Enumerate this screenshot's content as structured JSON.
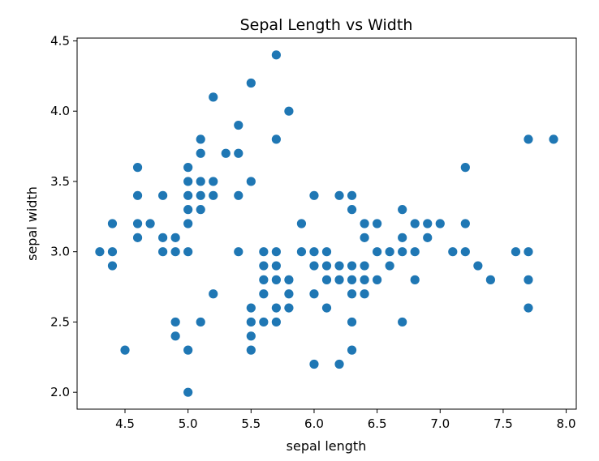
{
  "chart_data": {
    "type": "scatter",
    "title": "Sepal Length vs Width",
    "xlabel": "sepal length",
    "ylabel": "sepal width",
    "xlim": [
      4.12,
      8.08
    ],
    "ylim": [
      1.88,
      4.52
    ],
    "xticks": [
      4.5,
      5.0,
      5.5,
      6.0,
      6.5,
      7.0,
      7.5,
      8.0
    ],
    "xtick_labels": [
      "4.5",
      "5.0",
      "5.5",
      "6.0",
      "6.5",
      "7.0",
      "7.5",
      "8.0"
    ],
    "yticks": [
      2.0,
      2.5,
      3.0,
      3.5,
      4.0,
      4.5
    ],
    "ytick_labels": [
      "2.0",
      "2.5",
      "3.0",
      "3.5",
      "4.0",
      "4.5"
    ],
    "grid": false,
    "legend": "none",
    "marker_color": "#1f77b4",
    "points": [
      [
        4.3,
        3.0
      ],
      [
        4.4,
        3.2
      ],
      [
        4.4,
        3.0
      ],
      [
        4.4,
        2.9
      ],
      [
        4.5,
        2.3
      ],
      [
        4.6,
        3.6
      ],
      [
        4.6,
        3.4
      ],
      [
        4.6,
        3.2
      ],
      [
        4.6,
        3.1
      ],
      [
        4.7,
        3.2
      ],
      [
        4.8,
        3.4
      ],
      [
        4.8,
        3.1
      ],
      [
        4.8,
        3.0
      ],
      [
        4.9,
        3.1
      ],
      [
        4.9,
        3.0
      ],
      [
        4.9,
        2.5
      ],
      [
        4.9,
        2.4
      ],
      [
        5.0,
        3.6
      ],
      [
        5.0,
        3.5
      ],
      [
        5.0,
        3.4
      ],
      [
        5.0,
        3.3
      ],
      [
        5.0,
        3.2
      ],
      [
        5.0,
        3.0
      ],
      [
        5.0,
        2.3
      ],
      [
        5.0,
        2.0
      ],
      [
        5.1,
        3.8
      ],
      [
        5.1,
        3.7
      ],
      [
        5.1,
        3.5
      ],
      [
        5.1,
        3.4
      ],
      [
        5.1,
        3.3
      ],
      [
        5.1,
        2.5
      ],
      [
        5.2,
        4.1
      ],
      [
        5.2,
        3.5
      ],
      [
        5.2,
        3.4
      ],
      [
        5.2,
        2.7
      ],
      [
        5.3,
        3.7
      ],
      [
        5.4,
        3.9
      ],
      [
        5.4,
        3.7
      ],
      [
        5.4,
        3.4
      ],
      [
        5.4,
        3.0
      ],
      [
        5.5,
        4.2
      ],
      [
        5.5,
        3.5
      ],
      [
        5.5,
        2.6
      ],
      [
        5.5,
        2.5
      ],
      [
        5.5,
        2.4
      ],
      [
        5.5,
        2.3
      ],
      [
        5.6,
        3.0
      ],
      [
        5.6,
        2.9
      ],
      [
        5.6,
        2.8
      ],
      [
        5.6,
        2.7
      ],
      [
        5.6,
        2.5
      ],
      [
        5.7,
        4.4
      ],
      [
        5.7,
        3.8
      ],
      [
        5.7,
        3.0
      ],
      [
        5.7,
        2.9
      ],
      [
        5.7,
        2.8
      ],
      [
        5.7,
        2.6
      ],
      [
        5.7,
        2.5
      ],
      [
        5.8,
        4.0
      ],
      [
        5.8,
        2.8
      ],
      [
        5.8,
        2.7
      ],
      [
        5.8,
        2.6
      ],
      [
        5.9,
        3.2
      ],
      [
        5.9,
        3.0
      ],
      [
        6.0,
        3.4
      ],
      [
        6.0,
        3.0
      ],
      [
        6.0,
        2.9
      ],
      [
        6.0,
        2.7
      ],
      [
        6.0,
        2.2
      ],
      [
        6.1,
        3.0
      ],
      [
        6.1,
        2.9
      ],
      [
        6.1,
        2.8
      ],
      [
        6.1,
        2.6
      ],
      [
        6.2,
        3.4
      ],
      [
        6.2,
        2.9
      ],
      [
        6.2,
        2.8
      ],
      [
        6.2,
        2.2
      ],
      [
        6.3,
        3.4
      ],
      [
        6.3,
        3.3
      ],
      [
        6.3,
        2.9
      ],
      [
        6.3,
        2.8
      ],
      [
        6.3,
        2.7
      ],
      [
        6.3,
        2.5
      ],
      [
        6.3,
        2.3
      ],
      [
        6.4,
        3.2
      ],
      [
        6.4,
        3.1
      ],
      [
        6.4,
        2.9
      ],
      [
        6.4,
        2.8
      ],
      [
        6.4,
        2.7
      ],
      [
        6.5,
        3.2
      ],
      [
        6.5,
        3.0
      ],
      [
        6.5,
        2.8
      ],
      [
        6.6,
        3.0
      ],
      [
        6.6,
        2.9
      ],
      [
        6.7,
        3.3
      ],
      [
        6.7,
        3.1
      ],
      [
        6.7,
        3.0
      ],
      [
        6.7,
        2.5
      ],
      [
        6.8,
        3.2
      ],
      [
        6.8,
        3.0
      ],
      [
        6.8,
        2.8
      ],
      [
        6.9,
        3.2
      ],
      [
        6.9,
        3.1
      ],
      [
        7.0,
        3.2
      ],
      [
        7.1,
        3.0
      ],
      [
        7.2,
        3.6
      ],
      [
        7.2,
        3.2
      ],
      [
        7.2,
        3.0
      ],
      [
        7.3,
        2.9
      ],
      [
        7.4,
        2.8
      ],
      [
        7.6,
        3.0
      ],
      [
        7.7,
        3.8
      ],
      [
        7.7,
        3.0
      ],
      [
        7.7,
        2.8
      ],
      [
        7.7,
        2.6
      ],
      [
        7.9,
        3.8
      ]
    ]
  }
}
